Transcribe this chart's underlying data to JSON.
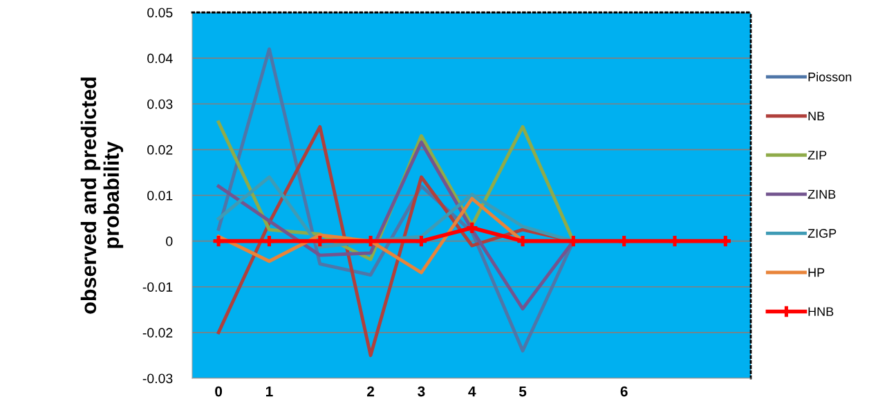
{
  "chart_data": {
    "type": "line",
    "ylabel": "observed and predicted\nprobability",
    "categories": [
      "0",
      "1",
      null,
      "2",
      "3",
      "4",
      "5",
      null,
      "6",
      null,
      null
    ],
    "ylim": [
      -0.03,
      0.05
    ],
    "yticks": [
      -0.03,
      -0.02,
      -0.01,
      0,
      0.01,
      0.02,
      0.03,
      0.04,
      0.05
    ],
    "grid": "y",
    "legend": "right",
    "line_style": "solid",
    "marker": "none",
    "series": [
      {
        "name": "Piosson",
        "color": "#4f76a8",
        "values": [
          0.0026,
          0.042,
          -0.005,
          -0.0074,
          0.012,
          0.002,
          -0.024,
          0,
          null,
          null,
          null
        ]
      },
      {
        "name": "NB",
        "color": "#b0403c",
        "values": [
          -0.02,
          0.004,
          0.025,
          -0.025,
          0.014,
          -0.001,
          0.0025,
          0,
          null,
          null,
          null
        ]
      },
      {
        "name": "ZIP",
        "color": "#8fab4a",
        "values": [
          0.026,
          0.0025,
          0.0015,
          -0.004,
          0.023,
          0.0034,
          0.025,
          0,
          null,
          null,
          null
        ]
      },
      {
        "name": "ZINB",
        "color": "#73558f",
        "values": [
          0.012,
          0.0044,
          -0.0031,
          -0.0026,
          0.0216,
          0.0025,
          -0.0148,
          0,
          null,
          null,
          null
        ]
      },
      {
        "name": "ZIGP",
        "color": "#3f9bb5",
        "values": [
          0.0049,
          0.014,
          -0.0013,
          0,
          0.001,
          0.0102,
          0.0032,
          0,
          null,
          null,
          null
        ]
      },
      {
        "name": "HP",
        "color": "#e8843a",
        "values": [
          0.001,
          -0.0044,
          0.0013,
          0,
          -0.0069,
          0.0093,
          0,
          0,
          null,
          null,
          null
        ]
      },
      {
        "name": "HNB",
        "color": "#ff0000",
        "marker": "cross",
        "values": [
          0,
          0,
          0,
          0,
          0,
          0.0029,
          0,
          0,
          0,
          0,
          0
        ]
      }
    ]
  }
}
